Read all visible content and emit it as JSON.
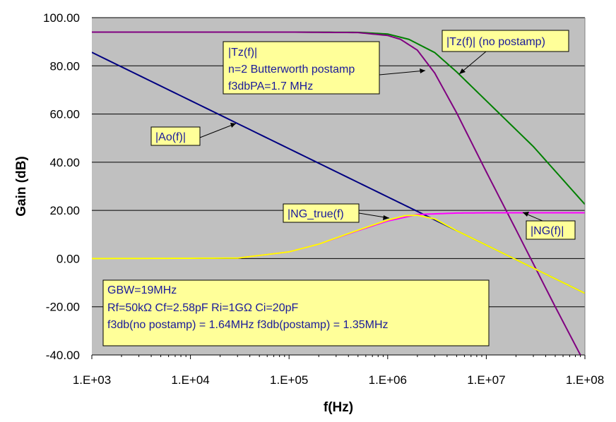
{
  "chart_data": {
    "type": "line",
    "xlabel": "f(Hz)",
    "ylabel": "Gain (dB)",
    "xscale": "log",
    "xlim": [
      1000,
      100000000
    ],
    "ylim": [
      -40,
      100
    ],
    "grid": "horizontal",
    "x_ticks": [
      "1.E+03",
      "1.E+04",
      "1.E+05",
      "1.E+06",
      "1.E+07",
      "1.E+08"
    ],
    "y_ticks": [
      "-40.00",
      "-20.00",
      "0.00",
      "20.00",
      "40.00",
      "60.00",
      "80.00",
      "100.00"
    ],
    "series": [
      {
        "name": "|Ao(f)|",
        "color": "#000080",
        "x": [
          1000,
          10000,
          100000,
          1000000,
          2000000,
          5000000,
          10000000,
          100000000
        ],
        "y": [
          85.6,
          65.6,
          45.6,
          25.6,
          19.6,
          11.6,
          5.6,
          -14.4
        ]
      },
      {
        "name": "|Tz(f)| (no postamp)",
        "color": "#008000",
        "x": [
          1000,
          100000,
          500000,
          1000000,
          1640000,
          3000000,
          5000000,
          10000000,
          30000000,
          100000000
        ],
        "y": [
          94,
          94,
          93.9,
          93.2,
          91,
          85.5,
          77.5,
          65.5,
          46.5,
          22.5
        ]
      },
      {
        "name": "|Tz(f)|",
        "color": "#800080",
        "x": [
          1000,
          100000,
          500000,
          1000000,
          1350000,
          2000000,
          3000000,
          5000000,
          10000000,
          20000000,
          50000000,
          90000000
        ],
        "y": [
          94,
          94,
          93.8,
          92.6,
          91,
          86.5,
          77,
          60.5,
          36,
          12,
          -20,
          -40
        ]
      },
      {
        "name": "|NG(f)|",
        "color": "#ff00ff",
        "x": [
          30000,
          100000,
          200000,
          500000,
          1000000,
          2000000,
          5000000,
          10000000,
          100000000
        ],
        "y": [
          0.2,
          2.8,
          6,
          11.6,
          15.6,
          18.3,
          18.9,
          19,
          19
        ]
      },
      {
        "name": "|NG_true(f)",
        "color": "#ffff00",
        "x": [
          1000,
          30000,
          100000,
          200000,
          500000,
          1000000,
          1500000,
          2000000,
          3000000,
          5000000,
          10000000,
          100000000
        ],
        "y": [
          0,
          0.2,
          2.8,
          6,
          11.8,
          16,
          17.8,
          18,
          16.5,
          11.6,
          5.6,
          -14.4
        ]
      }
    ],
    "annotations": [
      {
        "lines": [
          "|Tz(f)|",
          "n=2 Butterworth postamp",
          "f3dbPA=1.7 MHz"
        ]
      },
      {
        "lines": [
          "|Tz(f)| (no postamp)"
        ]
      },
      {
        "lines": [
          "|Ao(f)|"
        ]
      },
      {
        "lines": [
          "|NG_true(f)"
        ]
      },
      {
        "lines": [
          "|NG(f)|"
        ]
      },
      {
        "lines": [
          "GBW=19MHz",
          "Rf=50kΩ  Cf=2.58pF    Ri=1GΩ  Ci=20pF",
          "f3db(no postamp) = 1.64MHz    f3db(postamp) = 1.35MHz"
        ]
      }
    ],
    "plot_background": "#c0c0c0"
  }
}
